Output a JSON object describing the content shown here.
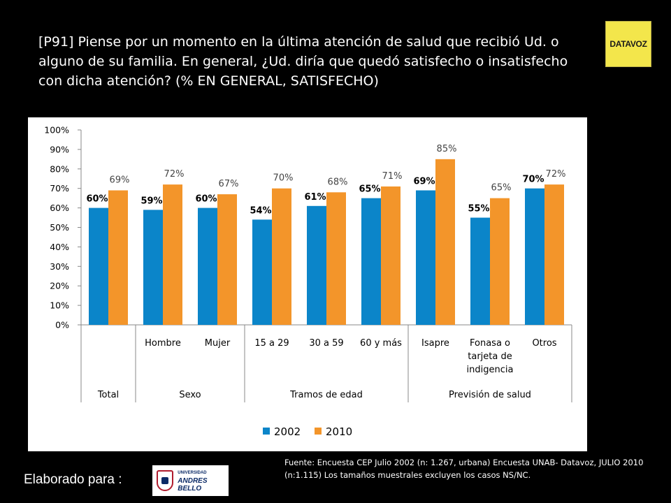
{
  "title": "[P91] Piense por un momento en la última atención de salud que recibió Ud. o alguno de su familia. En general, ¿Ud. diría que quedó satisfecho o insatisfecho con dicha atención? (% EN GENERAL, SATISFECHO)",
  "logo_brand": "DATAVOZ",
  "source_note": "Fuente: Encuesta CEP Julio 2002 (n: 1.267, urbana) Encuesta UNAB- Datavoz, JULIO 2010 (n:1.115) Los tamaños muestrales excluyen los casos NS/NC.",
  "footer_label": "Elaborado para :",
  "university_logo": {
    "line1": "UNIVERSIDAD",
    "line2": "ANDRES BELLO"
  },
  "colors": {
    "background": "#000000",
    "plot": "#ffffff",
    "series_2002": "#0b85c9",
    "series_2010": "#f3952a"
  },
  "chart_data": {
    "type": "bar",
    "title": "",
    "xlabel": "",
    "ylabel": "",
    "ylim": [
      0,
      100
    ],
    "y_ticks": [
      "0%",
      "10%",
      "20%",
      "30%",
      "40%",
      "50%",
      "60%",
      "70%",
      "80%",
      "90%",
      "100%"
    ],
    "grid": false,
    "legend_position": "bottom",
    "categories": [
      {
        "label": [
          ""
        ],
        "group": "Total"
      },
      {
        "label": [
          "Hombre"
        ],
        "group": "Sexo"
      },
      {
        "label": [
          "Mujer"
        ],
        "group": "Sexo"
      },
      {
        "label": [
          "15 a 29"
        ],
        "group": "Tramos de edad"
      },
      {
        "label": [
          "30 a 59"
        ],
        "group": "Tramos de edad"
      },
      {
        "label": [
          "60 y más"
        ],
        "group": "Tramos de edad"
      },
      {
        "label": [
          "Isapre"
        ],
        "group": "Previsión de salud"
      },
      {
        "label": [
          "Fonasa o",
          "tarjeta de",
          "indigencia"
        ],
        "group": "Previsión de salud"
      },
      {
        "label": [
          "Otros"
        ],
        "group": "Previsión de salud"
      }
    ],
    "groups": [
      {
        "name": "Total",
        "span": 1
      },
      {
        "name": "Sexo",
        "span": 2
      },
      {
        "name": "Tramos de edad",
        "span": 3
      },
      {
        "name": "Previsión de salud",
        "span": 3
      }
    ],
    "series": [
      {
        "name": "2002",
        "values": [
          60,
          59,
          60,
          54,
          61,
          65,
          69,
          55,
          70
        ],
        "labels": [
          "60%",
          "59%",
          "60%",
          "54%",
          "61%",
          "65%",
          "69%",
          "55%",
          "70%"
        ]
      },
      {
        "name": "2010",
        "values": [
          69,
          72,
          67,
          70,
          68,
          71,
          85,
          65,
          72
        ],
        "labels": [
          "69%",
          "72%",
          "67%",
          "70%",
          "68%",
          "71%",
          "85%",
          "65%",
          "72%"
        ]
      }
    ]
  }
}
